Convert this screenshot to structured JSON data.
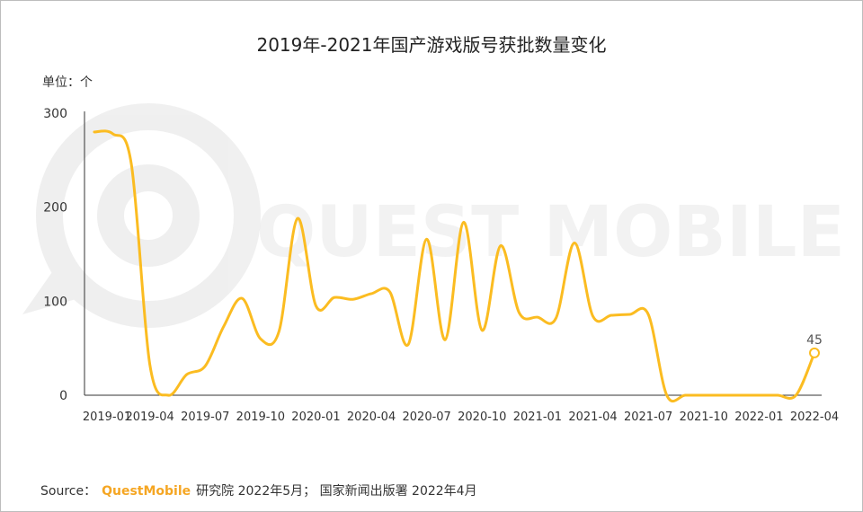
{
  "chart_data": {
    "type": "line",
    "title": "2019年-2021年国产游戏版号获批数量变化",
    "unit_label": "单位：个",
    "ylim": [
      0,
      300
    ],
    "y_ticks": [
      "300",
      "200",
      "100",
      "0"
    ],
    "x_tick_labels": [
      "2019-01",
      "2019-04",
      "2019-07",
      "2019-10",
      "2020-01",
      "2020-04",
      "2020-07",
      "2020-10",
      "2021-01",
      "2021-04",
      "2021-07",
      "2021-10",
      "2022-01",
      "2022-04"
    ],
    "x": [
      "2019-01",
      "2019-02",
      "2019-03",
      "2019-04",
      "2019-05",
      "2019-06",
      "2019-07",
      "2019-08",
      "2019-09",
      "2019-10",
      "2019-11",
      "2019-12",
      "2020-01",
      "2020-02",
      "2020-03",
      "2020-04",
      "2020-05",
      "2020-06",
      "2020-07",
      "2020-08",
      "2020-09",
      "2020-10",
      "2020-11",
      "2020-12",
      "2021-01",
      "2021-02",
      "2021-03",
      "2021-04",
      "2021-05",
      "2021-06",
      "2021-07",
      "2021-08",
      "2021-09",
      "2021-10",
      "2021-11",
      "2021-12",
      "2022-01",
      "2022-02",
      "2022-03",
      "2022-04"
    ],
    "series": [
      {
        "color": "#fbbc21",
        "values": [
          280,
          278,
          246,
          33,
          0,
          22,
          31,
          73,
          103,
          60,
          68,
          188,
          95,
          104,
          102,
          108,
          110,
          54,
          166,
          59,
          184,
          69,
          159,
          88,
          83,
          82,
          162,
          84,
          85,
          86,
          86,
          0,
          0,
          0,
          0,
          0,
          0,
          0,
          0,
          45
        ]
      }
    ],
    "data_labels": [
      {
        "index": 39,
        "text": "45"
      }
    ],
    "grid": false
  },
  "watermark": {
    "text": "QUEST MOBILE"
  },
  "source": {
    "label": "Source：",
    "brand": "QuestMobile",
    "text": "研究院 2022年5月； 国家新闻出版署 2022年4月"
  }
}
